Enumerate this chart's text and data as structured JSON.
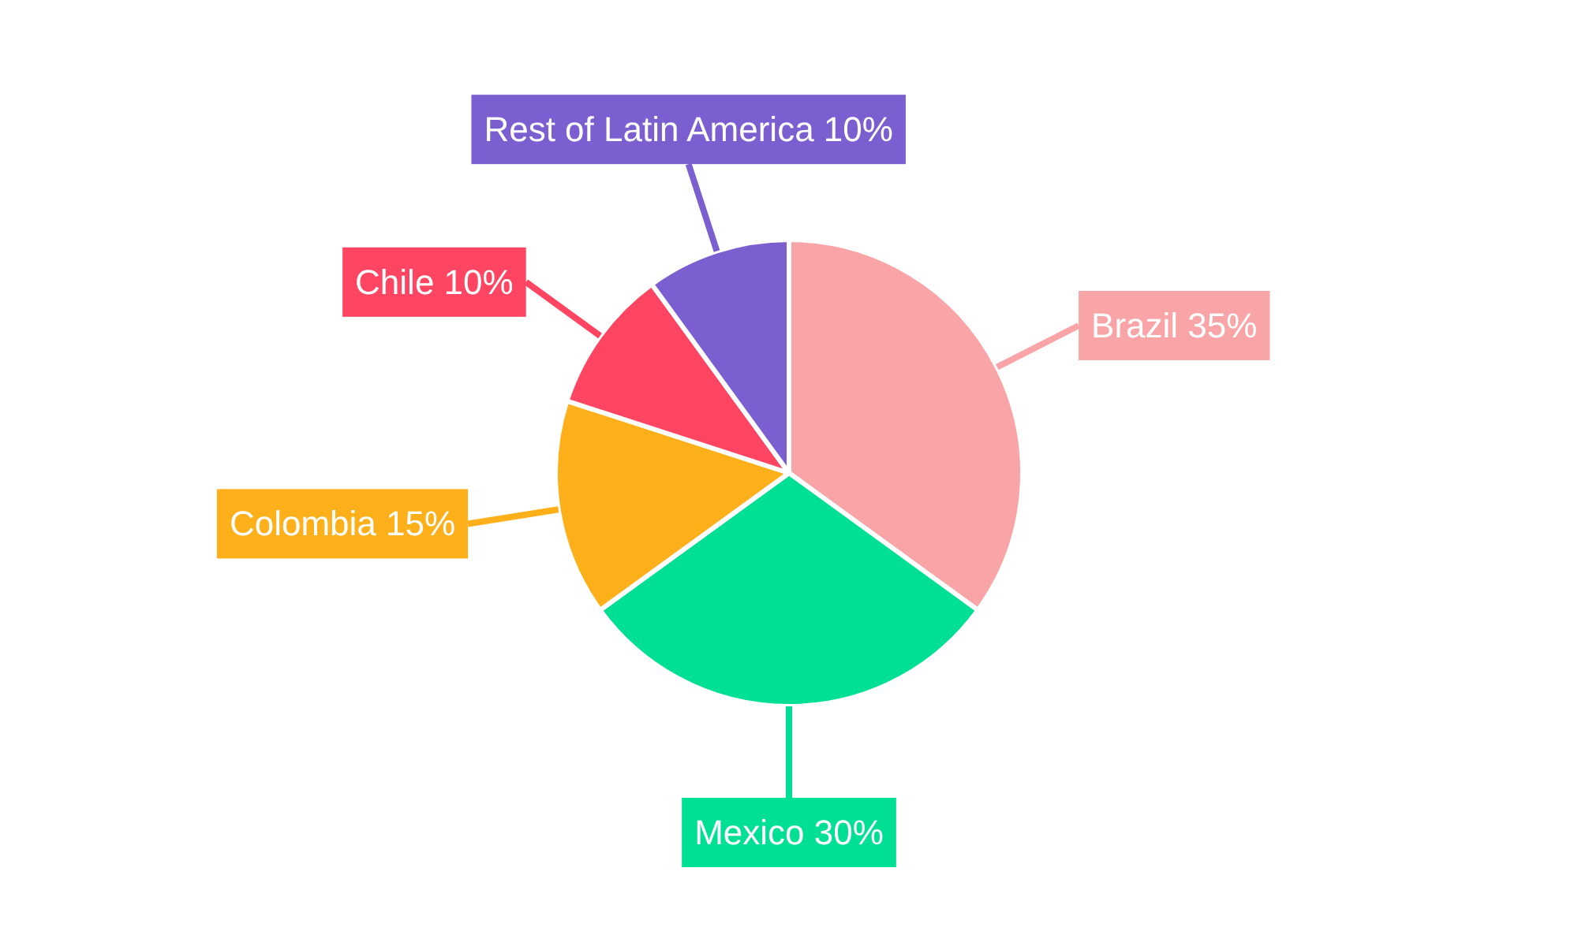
{
  "chart_data": {
    "type": "pie",
    "categories": [
      "Brazil",
      "Mexico",
      "Colombia",
      "Chile",
      "Rest of Latin America"
    ],
    "values": [
      35,
      30,
      15,
      10,
      10
    ],
    "value_labels": [
      "35%",
      "30%",
      "15%",
      "10%",
      "10%"
    ],
    "colors": [
      "#f9a5a8",
      "#00e094",
      "#fdb01a",
      "#ff4562",
      "#7b5fd0"
    ]
  }
}
